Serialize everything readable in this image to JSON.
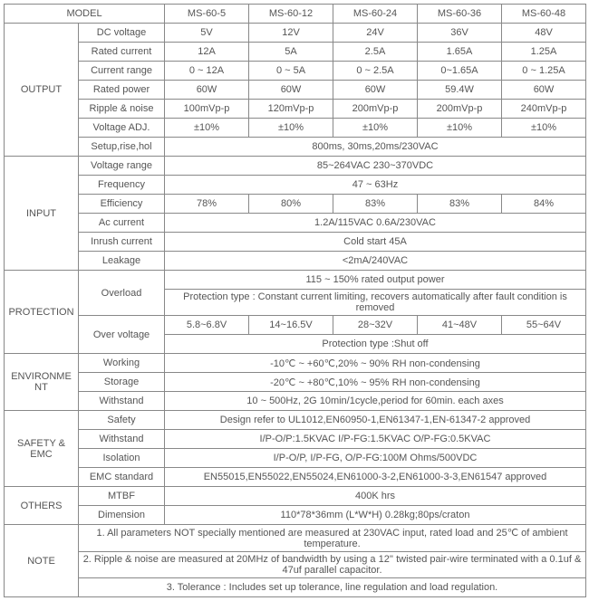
{
  "header": {
    "model": "MODEL",
    "cols": [
      "MS-60-5",
      "MS-60-12",
      "MS-60-24",
      "MS-60-36",
      "MS-60-48"
    ]
  },
  "output": {
    "section": "OUTPUT",
    "dc_voltage": {
      "label": "DC voltage",
      "vals": [
        "5V",
        "12V",
        "24V",
        "36V",
        "48V"
      ]
    },
    "rated_current": {
      "label": "Rated current",
      "vals": [
        "12A",
        "5A",
        "2.5A",
        "1.65A",
        "1.25A"
      ]
    },
    "current_range": {
      "label": "Current range",
      "vals": [
        "0 ~ 12A",
        "0 ~ 5A",
        "0 ~ 2.5A",
        "0~1.65A",
        "0 ~ 1.25A"
      ]
    },
    "rated_power": {
      "label": "Rated power",
      "vals": [
        "60W",
        "60W",
        "60W",
        "59.4W",
        "60W"
      ]
    },
    "ripple_noise": {
      "label": "Ripple & noise",
      "vals": [
        "100mVp-p",
        "120mVp-p",
        "200mVp-p",
        "200mVp-p",
        "240mVp-p"
      ]
    },
    "voltage_adj": {
      "label": "Voltage ADJ.",
      "vals": [
        "±10%",
        "±10%",
        "±10%",
        "±10%",
        "±10%"
      ]
    },
    "setup": {
      "label": "Setup,rise,hol",
      "val": "800ms, 30ms,20ms/230VAC"
    }
  },
  "input": {
    "section": "INPUT",
    "voltage_range": {
      "label": "Voltage range",
      "val": "85~264VAC     230~370VDC"
    },
    "frequency": {
      "label": "Frequency",
      "val": "47 ~ 63Hz"
    },
    "efficiency": {
      "label": "Efficiency",
      "vals": [
        "78%",
        "80%",
        "83%",
        "83%",
        "84%"
      ]
    },
    "ac_current": {
      "label": "Ac current",
      "val": "1.2A/115VAC     0.6A/230VAC"
    },
    "inrush_current": {
      "label": "Inrush current",
      "val": "Cold start 45A"
    },
    "leakage": {
      "label": "Leakage",
      "val": "<2mA/240VAC"
    }
  },
  "protection": {
    "section": "PROTECTION",
    "overload": {
      "label": "Overload",
      "r1": "115 ~ 150% rated output power",
      "r2": "Protection type : Constant current limiting, recovers automatically after fault condition is removed"
    },
    "over_voltage": {
      "label": "Over voltage",
      "vals": [
        "5.8~6.8V",
        "14~16.5V",
        "28~32V",
        "41~48V",
        "55~64V"
      ],
      "r2": "Protection type :Shut off"
    }
  },
  "environment": {
    "section": "ENVIRONMENT",
    "working": {
      "label": "Working",
      "val": "-10℃ ~ +60℃,20% ~ 90% RH non-condensing"
    },
    "storage": {
      "label": "Storage",
      "val": "-20℃ ~ +80℃,10% ~ 95% RH non-condensing"
    },
    "withstand": {
      "label": "Withstand",
      "val": "10 ~ 500Hz, 2G 10min/1cycle,period for 60min. each axes"
    }
  },
  "safety_emc": {
    "section": "SAFETY & EMC",
    "safety": {
      "label": "Safety",
      "val": "Design refer to UL1012,EN60950-1,EN61347-1,EN-61347-2 approved"
    },
    "withstand": {
      "label": "Withstand",
      "val": "I/P-O/P:1.5KVAC I/P-FG:1.5KVAC O/P-FG:0.5KVAC"
    },
    "isolation": {
      "label": "Isolation",
      "val": "I/P-O/P, I/P-FG, O/P-FG:100M Ohms/500VDC"
    },
    "emc": {
      "label": "EMC standard",
      "val": "EN55015,EN55022,EN55024,EN61000-3-2,EN61000-3-3,EN61547 approved"
    }
  },
  "others": {
    "section": "OTHERS",
    "mtbf": {
      "label": "MTBF",
      "val": "400K hrs"
    },
    "dimension": {
      "label": "Dimension",
      "val": "110*78*36mm (L*W*H) 0.28kg;80ps/craton"
    }
  },
  "note": {
    "section": "NOTE",
    "n1": "1. All parameters NOT specially mentioned are measured at 230VAC input, rated load and 25℃ of ambient temperature.",
    "n2": "2. Ripple & noise are measured at 20MHz of bandwidth by using a 12'' twisted pair-wire terminated with a 0.1uf & 47uf parallel capacitor.",
    "n3": "3. Tolerance : Includes set up tolerance, line regulation and load regulation."
  }
}
